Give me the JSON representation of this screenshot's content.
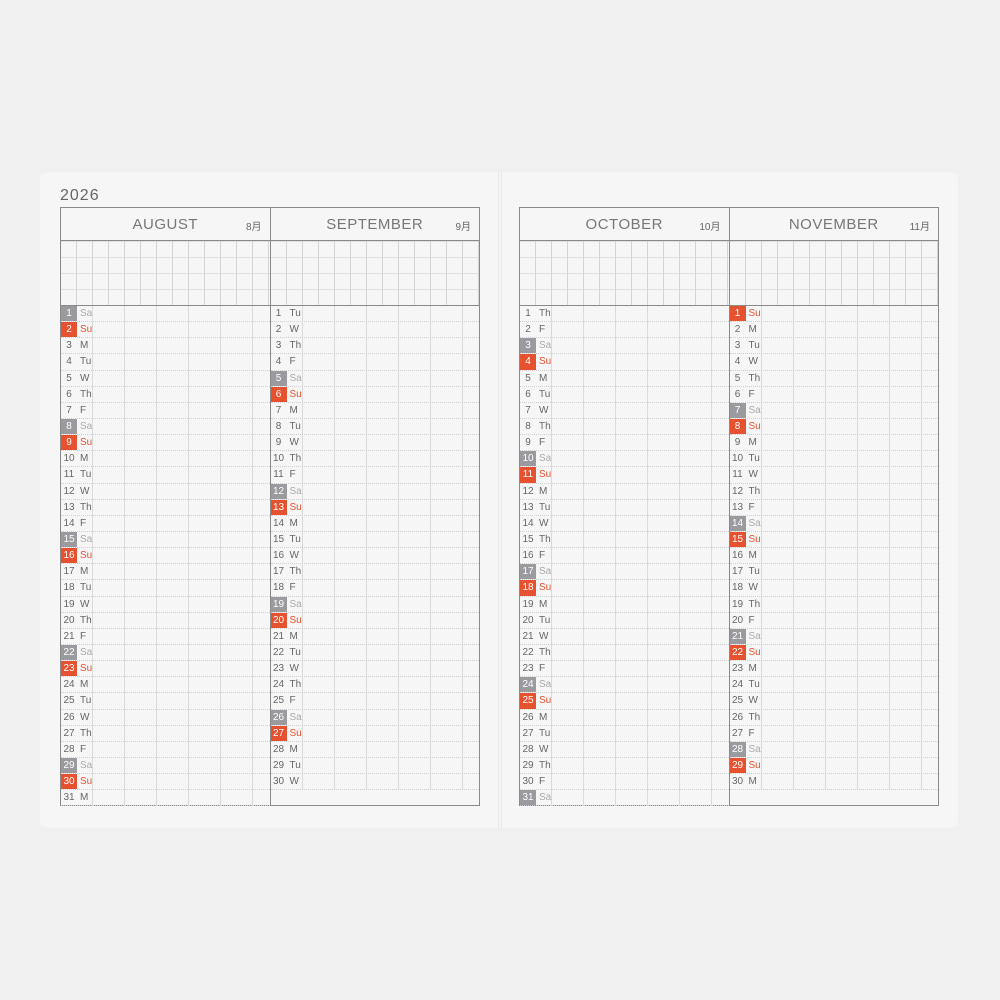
{
  "year": "2026",
  "colors": {
    "saturday": "#9b9b9f",
    "sunday": "#e6512f"
  },
  "months": [
    {
      "name": "AUGUST",
      "jp": "8月",
      "days": [
        [
          "1",
          "Sa"
        ],
        [
          "2",
          "Su"
        ],
        [
          "3",
          "M"
        ],
        [
          "4",
          "Tu"
        ],
        [
          "5",
          "W"
        ],
        [
          "6",
          "Th"
        ],
        [
          "7",
          "F"
        ],
        [
          "8",
          "Sa"
        ],
        [
          "9",
          "Su"
        ],
        [
          "10",
          "M"
        ],
        [
          "11",
          "Tu"
        ],
        [
          "12",
          "W"
        ],
        [
          "13",
          "Th"
        ],
        [
          "14",
          "F"
        ],
        [
          "15",
          "Sa"
        ],
        [
          "16",
          "Su"
        ],
        [
          "17",
          "M"
        ],
        [
          "18",
          "Tu"
        ],
        [
          "19",
          "W"
        ],
        [
          "20",
          "Th"
        ],
        [
          "21",
          "F"
        ],
        [
          "22",
          "Sa"
        ],
        [
          "23",
          "Su"
        ],
        [
          "24",
          "M"
        ],
        [
          "25",
          "Tu"
        ],
        [
          "26",
          "W"
        ],
        [
          "27",
          "Th"
        ],
        [
          "28",
          "F"
        ],
        [
          "29",
          "Sa"
        ],
        [
          "30",
          "Su"
        ],
        [
          "31",
          "M"
        ]
      ]
    },
    {
      "name": "SEPTEMBER",
      "jp": "9月",
      "days": [
        [
          "1",
          "Tu"
        ],
        [
          "2",
          "W"
        ],
        [
          "3",
          "Th"
        ],
        [
          "4",
          "F"
        ],
        [
          "5",
          "Sa"
        ],
        [
          "6",
          "Su"
        ],
        [
          "7",
          "M"
        ],
        [
          "8",
          "Tu"
        ],
        [
          "9",
          "W"
        ],
        [
          "10",
          "Th"
        ],
        [
          "11",
          "F"
        ],
        [
          "12",
          "Sa"
        ],
        [
          "13",
          "Su"
        ],
        [
          "14",
          "M"
        ],
        [
          "15",
          "Tu"
        ],
        [
          "16",
          "W"
        ],
        [
          "17",
          "Th"
        ],
        [
          "18",
          "F"
        ],
        [
          "19",
          "Sa"
        ],
        [
          "20",
          "Su"
        ],
        [
          "21",
          "M"
        ],
        [
          "22",
          "Tu"
        ],
        [
          "23",
          "W"
        ],
        [
          "24",
          "Th"
        ],
        [
          "25",
          "F"
        ],
        [
          "26",
          "Sa"
        ],
        [
          "27",
          "Su"
        ],
        [
          "28",
          "M"
        ],
        [
          "29",
          "Tu"
        ],
        [
          "30",
          "W"
        ]
      ]
    },
    {
      "name": "OCTOBER",
      "jp": "10月",
      "days": [
        [
          "1",
          "Th"
        ],
        [
          "2",
          "F"
        ],
        [
          "3",
          "Sa"
        ],
        [
          "4",
          "Su"
        ],
        [
          "5",
          "M"
        ],
        [
          "6",
          "Tu"
        ],
        [
          "7",
          "W"
        ],
        [
          "8",
          "Th"
        ],
        [
          "9",
          "F"
        ],
        [
          "10",
          "Sa"
        ],
        [
          "11",
          "Su"
        ],
        [
          "12",
          "M"
        ],
        [
          "13",
          "Tu"
        ],
        [
          "14",
          "W"
        ],
        [
          "15",
          "Th"
        ],
        [
          "16",
          "F"
        ],
        [
          "17",
          "Sa"
        ],
        [
          "18",
          "Su"
        ],
        [
          "19",
          "M"
        ],
        [
          "20",
          "Tu"
        ],
        [
          "21",
          "W"
        ],
        [
          "22",
          "Th"
        ],
        [
          "23",
          "F"
        ],
        [
          "24",
          "Sa"
        ],
        [
          "25",
          "Su"
        ],
        [
          "26",
          "M"
        ],
        [
          "27",
          "Tu"
        ],
        [
          "28",
          "W"
        ],
        [
          "29",
          "Th"
        ],
        [
          "30",
          "F"
        ],
        [
          "31",
          "Sa"
        ]
      ]
    },
    {
      "name": "NOVEMBER",
      "jp": "11月",
      "days": [
        [
          "1",
          "Su"
        ],
        [
          "2",
          "M"
        ],
        [
          "3",
          "Tu"
        ],
        [
          "4",
          "W"
        ],
        [
          "5",
          "Th"
        ],
        [
          "6",
          "F"
        ],
        [
          "7",
          "Sa"
        ],
        [
          "8",
          "Su"
        ],
        [
          "9",
          "M"
        ],
        [
          "10",
          "Tu"
        ],
        [
          "11",
          "W"
        ],
        [
          "12",
          "Th"
        ],
        [
          "13",
          "F"
        ],
        [
          "14",
          "Sa"
        ],
        [
          "15",
          "Su"
        ],
        [
          "16",
          "M"
        ],
        [
          "17",
          "Tu"
        ],
        [
          "18",
          "W"
        ],
        [
          "19",
          "Th"
        ],
        [
          "20",
          "F"
        ],
        [
          "21",
          "Sa"
        ],
        [
          "22",
          "Su"
        ],
        [
          "23",
          "M"
        ],
        [
          "24",
          "Tu"
        ],
        [
          "25",
          "W"
        ],
        [
          "26",
          "Th"
        ],
        [
          "27",
          "F"
        ],
        [
          "28",
          "Sa"
        ],
        [
          "29",
          "Su"
        ],
        [
          "30",
          "M"
        ]
      ]
    }
  ]
}
